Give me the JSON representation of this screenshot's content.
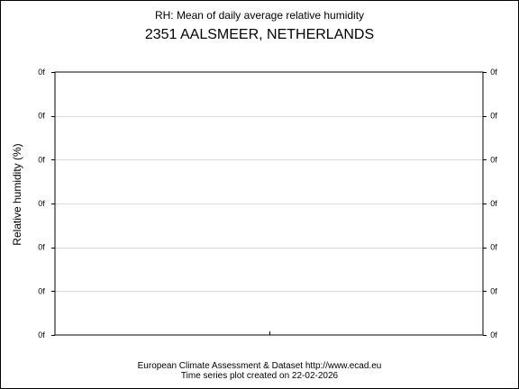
{
  "chart_data": {
    "type": "line",
    "subtitle": "RH: Mean of daily average relative humidity",
    "title": "2351 AALSMEER, NETHERLANDS",
    "ylabel": "Relative humidity (%)",
    "xlabel": "",
    "y_tick_labels": [
      "0f",
      "0f",
      "0f",
      "0f",
      "0f",
      "0f",
      "0f"
    ],
    "gridlines": "horizontal",
    "series": [],
    "colors": {
      "axis": "#000000",
      "grid": "#d9d9d9",
      "background": "#ffffff"
    }
  },
  "footer": {
    "line1": "European Climate Assessment & Dataset  http://www.ecad.eu",
    "line2": "Time series plot created on 22-02-2026"
  }
}
